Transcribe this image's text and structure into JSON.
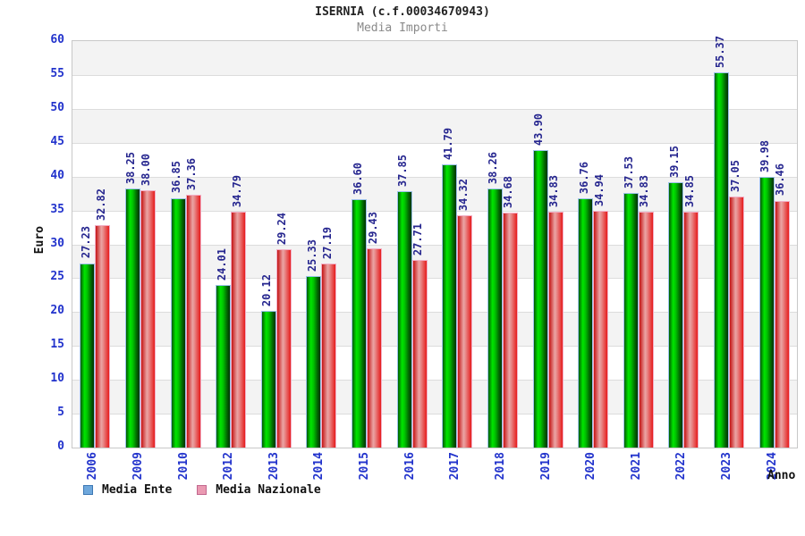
{
  "header": {
    "title": "ISERNIA (c.f.00034670943)",
    "subtitle": "Media Importi"
  },
  "chart_data": {
    "type": "bar",
    "title": "ISERNIA (c.f.00034670943)",
    "subtitle": "Media Importi",
    "xlabel": "Anno",
    "ylabel": "Euro",
    "ylim": [
      0,
      60
    ],
    "ytick_step": 5,
    "grid": "horizontal-bands-alternating",
    "legend_position": "bottom-left",
    "categories": [
      "2006",
      "2009",
      "2010",
      "2012",
      "2013",
      "2014",
      "2015",
      "2016",
      "2017",
      "2018",
      "2019",
      "2020",
      "2021",
      "2022",
      "2023",
      "2024"
    ],
    "series": [
      {
        "name": "Media Ente",
        "legend_color": "#6fa8dc",
        "bar_style": "green-gradient-cylinder",
        "values": [
          27.23,
          38.25,
          36.85,
          24.01,
          20.12,
          25.33,
          36.6,
          37.85,
          41.79,
          38.26,
          43.9,
          36.76,
          37.53,
          39.15,
          55.37,
          39.98
        ]
      },
      {
        "name": "Media Nazionale",
        "legend_color": "#ea9ab2",
        "bar_style": "red-gradient-cylinder",
        "values": [
          32.82,
          38.0,
          37.36,
          34.79,
          29.24,
          27.19,
          29.43,
          27.71,
          34.32,
          34.68,
          34.83,
          34.94,
          34.83,
          34.85,
          37.05,
          36.46
        ]
      }
    ],
    "colors": {
      "band_gray": "#f3f3f3",
      "band_white": "#ffffff",
      "gridline": "#dcdcdc",
      "plot_border": "#c8c8c8",
      "tick_label": "#2233cc",
      "value_label": "#26268f",
      "title": "#222222",
      "subtitle": "#8a8a8a"
    }
  }
}
